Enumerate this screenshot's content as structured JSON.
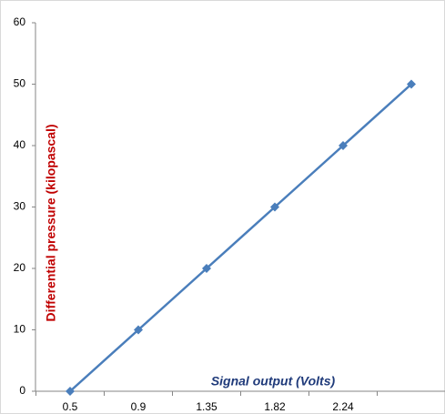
{
  "chart_data": {
    "type": "line",
    "x_label": "Signal output (Volts)",
    "y_label": "Differential pressure (kilopascal)",
    "categories": [
      "0.5",
      "0.9",
      "1.35",
      "1.82",
      "2.24",
      null
    ],
    "series": [
      {
        "name": null,
        "color": "#4a7ebb",
        "values": [
          0,
          10,
          20,
          30,
          40,
          50
        ]
      }
    ],
    "ylim": [
      0,
      60
    ],
    "yticks": [
      0,
      10,
      20,
      30,
      40,
      50,
      60
    ],
    "grid": false
  }
}
